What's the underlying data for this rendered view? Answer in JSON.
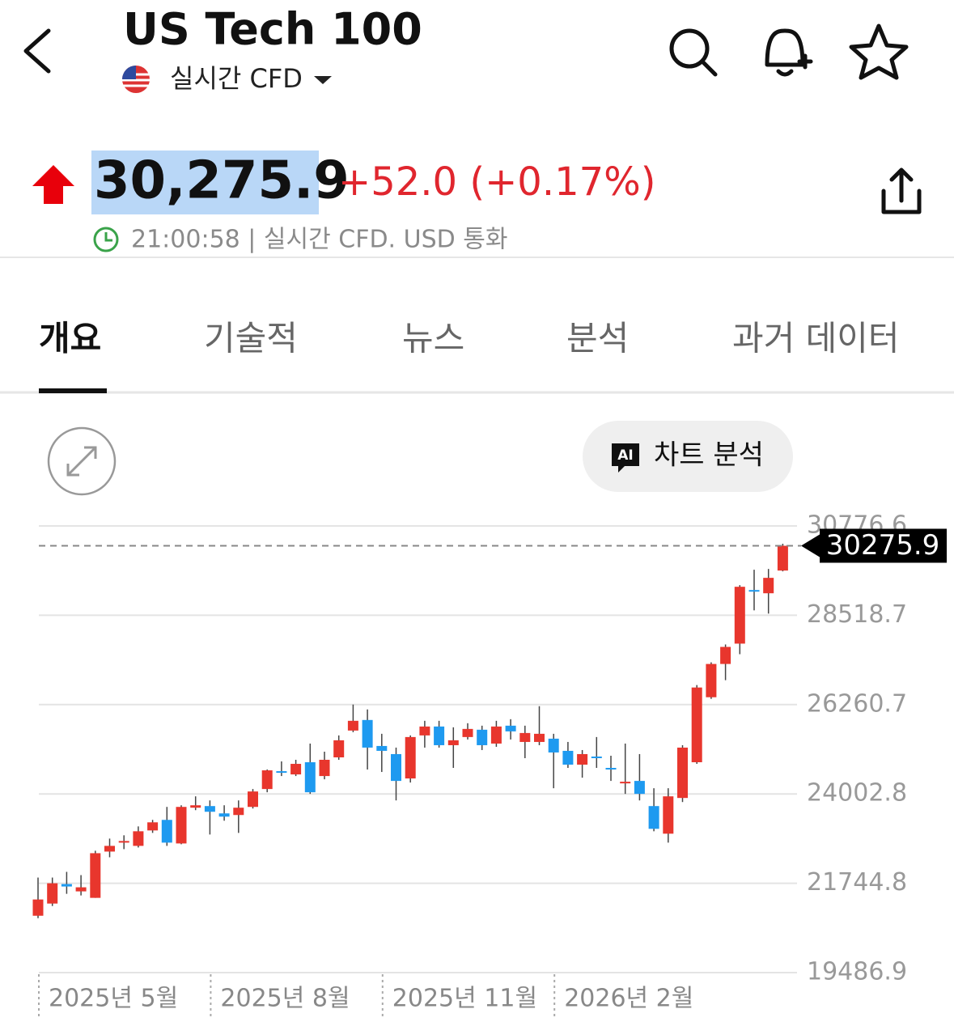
{
  "header": {
    "title": "US Tech 100",
    "market": "실시간 CFD"
  },
  "quote": {
    "price": "30,275.9",
    "change": "+52.0 (+0.17%)",
    "time": "21:00:58 | 실시간 CFD. USD 통화"
  },
  "tabs": [
    "개요",
    "기술적",
    "뉴스",
    "분석",
    "과거 데이터"
  ],
  "chart_button": {
    "badge": "AI",
    "label": "차트 분석"
  },
  "chart_data": {
    "type": "candlestick",
    "categories": [
      "2025년 5월",
      null,
      null,
      null,
      null,
      null,
      null,
      null,
      null,
      null,
      null,
      null,
      "2025년 8월",
      null,
      null,
      null,
      null,
      null,
      null,
      null,
      null,
      null,
      null,
      null,
      "2025년 11월",
      null,
      null,
      null,
      null,
      null,
      null,
      null,
      null,
      null,
      null,
      null,
      "2026년 2월",
      null,
      null,
      null,
      null,
      null,
      null,
      null,
      null,
      null,
      null,
      null,
      null,
      null,
      null,
      null,
      null
    ],
    "open": [
      20924,
      21232,
      21725,
      21540,
      21376,
      22546,
      22772,
      22690,
      23080,
      23347,
      22751,
      23655,
      23696,
      23511,
      23470,
      23675,
      24127,
      24578,
      24496,
      24804,
      24455,
      24927,
      25605,
      25872,
      25215,
      25010,
      24394,
      25482,
      25707,
      25235,
      25441,
      25626,
      25276,
      25728,
      25317,
      25317,
      25400,
      25092,
      24743,
      24948,
      24661,
      24270,
      24332,
      23696,
      22998,
      23901,
      24804,
      26447,
      27288,
      27802,
      29157,
      29075,
      29649
    ],
    "high": [
      21889,
      21889,
      22033,
      21951,
      22567,
      22874,
      22957,
      23182,
      23347,
      23675,
      23716,
      23942,
      23839,
      23716,
      23839,
      24127,
      24620,
      24825,
      24866,
      25276,
      25071,
      25482,
      26262,
      26139,
      25523,
      25174,
      25482,
      25851,
      25851,
      25687,
      25790,
      25728,
      25851,
      25892,
      25728,
      26221,
      25523,
      25317,
      25112,
      25441,
      24968,
      25276,
      25010,
      24147,
      24147,
      25235,
      26755,
      27329,
      27781,
      29280,
      29670,
      29690,
      30327
    ],
    "low": [
      20863,
      21170,
      21478,
      21437,
      21376,
      22402,
      22608,
      22649,
      23018,
      22690,
      22731,
      23593,
      22977,
      23326,
      23018,
      23634,
      24045,
      24455,
      24455,
      24004,
      24373,
      24866,
      25564,
      24620,
      24558,
      23839,
      24291,
      25174,
      25174,
      24661,
      25379,
      25112,
      25194,
      25379,
      24907,
      25235,
      24147,
      24661,
      24414,
      24661,
      24332,
      24004,
      23839,
      23059,
      22772,
      23798,
      24763,
      26406,
      26878,
      27535,
      28643,
      28561,
      29629
    ],
    "close": [
      21335,
      21745,
      21663,
      21643,
      22505,
      22690,
      22813,
      23059,
      23285,
      22772,
      23675,
      23716,
      23552,
      23429,
      23655,
      24065,
      24599,
      24537,
      24763,
      24045,
      24866,
      25359,
      25851,
      25174,
      25092,
      24332,
      25441,
      25707,
      25235,
      25359,
      25646,
      25235,
      25707,
      25584,
      25543,
      25523,
      25051,
      24743,
      25010,
      24927,
      24640,
      24311,
      24004,
      23121,
      23942,
      25174,
      26693,
      27288,
      27719,
      29239,
      29116,
      29465,
      30275.9
    ],
    "up_color": "#e8362d",
    "down_color": "#1e9af0",
    "ylim": [
      19486.9,
      30776.6
    ],
    "yticks": [
      19486.9,
      21744.8,
      24002.8,
      26260.7,
      28518.7,
      30776.6
    ],
    "grid": true
  }
}
